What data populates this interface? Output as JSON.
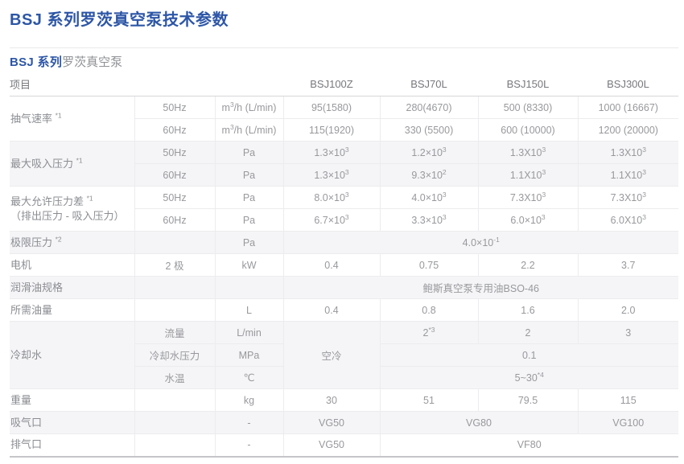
{
  "page_title": "BSJ 系列罗茨真空泵技术参数",
  "subtitle": {
    "bold": "BSJ 系列",
    "rest": "罗茨真空泵"
  },
  "colors": {
    "accent_blue": "#2d56a6",
    "label_gray": "#8b8d92",
    "value_gray": "#98999d",
    "stripe_gray": "#f5f5f7",
    "border_light": "#ececee",
    "border_dark": "#c6c6c9"
  },
  "table": {
    "header": {
      "item_label": "项目",
      "models": [
        "BSJ100Z",
        "BSJ70L",
        "BSJ150L",
        "BSJ300L"
      ]
    },
    "rows": [
      {
        "shade": false,
        "cells": [
          {
            "kind": "label",
            "rs": 2,
            "parts": [
              {
                "t": "抽气速率 "
              },
              {
                "s": "*1"
              }
            ]
          },
          {
            "kind": "sub",
            "parts": [
              {
                "t": "50Hz"
              }
            ]
          },
          {
            "kind": "unit",
            "parts": [
              {
                "t": "m"
              },
              {
                "s": "3"
              },
              {
                "t": "/h (L/min)"
              }
            ]
          },
          {
            "parts": [
              {
                "t": "95(1580)"
              }
            ]
          },
          {
            "parts": [
              {
                "t": "280(4670)"
              }
            ]
          },
          {
            "parts": [
              {
                "t": "500 (8330)"
              }
            ]
          },
          {
            "parts": [
              {
                "t": "1000 (16667)"
              }
            ]
          }
        ]
      },
      {
        "shade": false,
        "cells": [
          {
            "kind": "sub",
            "parts": [
              {
                "t": "60Hz"
              }
            ]
          },
          {
            "kind": "unit",
            "parts": [
              {
                "t": "m"
              },
              {
                "s": "3"
              },
              {
                "t": "/h (L/min)"
              }
            ]
          },
          {
            "parts": [
              {
                "t": "115(1920)"
              }
            ]
          },
          {
            "parts": [
              {
                "t": "330 (5500)"
              }
            ]
          },
          {
            "parts": [
              {
                "t": "600 (10000)"
              }
            ]
          },
          {
            "parts": [
              {
                "t": "1200 (20000)"
              }
            ]
          }
        ]
      },
      {
        "shade": true,
        "cells": [
          {
            "kind": "label",
            "rs": 2,
            "parts": [
              {
                "t": "最大吸入压力 "
              },
              {
                "s": "*1"
              }
            ]
          },
          {
            "kind": "sub",
            "parts": [
              {
                "t": "50Hz"
              }
            ]
          },
          {
            "kind": "unit",
            "parts": [
              {
                "t": "Pa"
              }
            ]
          },
          {
            "parts": [
              {
                "t": "1.3×10"
              },
              {
                "s": "3"
              }
            ]
          },
          {
            "parts": [
              {
                "t": "1.2×10"
              },
              {
                "s": "3"
              }
            ]
          },
          {
            "parts": [
              {
                "t": "1.3X10"
              },
              {
                "s": "3"
              }
            ]
          },
          {
            "parts": [
              {
                "t": "1.3X10"
              },
              {
                "s": "3"
              }
            ]
          }
        ]
      },
      {
        "shade": true,
        "cells": [
          {
            "kind": "sub",
            "parts": [
              {
                "t": "60Hz"
              }
            ]
          },
          {
            "kind": "unit",
            "parts": [
              {
                "t": "Pa"
              }
            ]
          },
          {
            "parts": [
              {
                "t": "1.3×10"
              },
              {
                "s": "3"
              }
            ]
          },
          {
            "parts": [
              {
                "t": "9.3×10"
              },
              {
                "s": "2"
              }
            ]
          },
          {
            "parts": [
              {
                "t": "1.1X10"
              },
              {
                "s": "3"
              }
            ]
          },
          {
            "parts": [
              {
                "t": "1.1X10"
              },
              {
                "s": "3"
              }
            ]
          }
        ]
      },
      {
        "shade": false,
        "cells": [
          {
            "kind": "label",
            "rs": 2,
            "parts": [
              {
                "t": "最大允许压力差 "
              },
              {
                "s": "*1"
              },
              {
                "br": true
              },
              {
                "t": "（排出压力 - 吸入压力）"
              }
            ]
          },
          {
            "kind": "sub",
            "parts": [
              {
                "t": "50Hz"
              }
            ]
          },
          {
            "kind": "unit",
            "parts": [
              {
                "t": "Pa"
              }
            ]
          },
          {
            "parts": [
              {
                "t": "8.0×10"
              },
              {
                "s": "3"
              }
            ]
          },
          {
            "parts": [
              {
                "t": "4.0×10"
              },
              {
                "s": "3"
              }
            ]
          },
          {
            "parts": [
              {
                "t": "7.3X10"
              },
              {
                "s": "3"
              }
            ]
          },
          {
            "parts": [
              {
                "t": "7.3X10"
              },
              {
                "s": "3"
              }
            ]
          }
        ]
      },
      {
        "shade": false,
        "cells": [
          {
            "kind": "sub",
            "parts": [
              {
                "t": "60Hz"
              }
            ]
          },
          {
            "kind": "unit",
            "parts": [
              {
                "t": "Pa"
              }
            ]
          },
          {
            "parts": [
              {
                "t": "6.7×10"
              },
              {
                "s": "3"
              }
            ]
          },
          {
            "parts": [
              {
                "t": "3.3×10"
              },
              {
                "s": "3"
              }
            ]
          },
          {
            "parts": [
              {
                "t": "6.0×10"
              },
              {
                "s": "3"
              }
            ]
          },
          {
            "parts": [
              {
                "t": "6.0X10"
              },
              {
                "s": "3"
              }
            ]
          }
        ]
      },
      {
        "shade": true,
        "cells": [
          {
            "kind": "label",
            "parts": [
              {
                "t": "极限压力 "
              },
              {
                "s": "*2"
              }
            ]
          },
          {
            "kind": "sub",
            "parts": []
          },
          {
            "kind": "unit",
            "parts": [
              {
                "t": "Pa"
              }
            ]
          },
          {
            "cs": 4,
            "parts": [
              {
                "t": "4.0×10"
              },
              {
                "s": "-1"
              }
            ]
          }
        ]
      },
      {
        "shade": false,
        "cells": [
          {
            "kind": "label",
            "parts": [
              {
                "t": "电机"
              }
            ]
          },
          {
            "kind": "sub",
            "parts": [
              {
                "t": "2 极"
              }
            ]
          },
          {
            "kind": "unit",
            "parts": [
              {
                "t": "kW"
              }
            ]
          },
          {
            "parts": [
              {
                "t": "0.4"
              }
            ]
          },
          {
            "parts": [
              {
                "t": "0.75"
              }
            ]
          },
          {
            "parts": [
              {
                "t": "2.2"
              }
            ]
          },
          {
            "parts": [
              {
                "t": "3.7"
              }
            ]
          }
        ]
      },
      {
        "shade": true,
        "cells": [
          {
            "kind": "label",
            "parts": [
              {
                "t": "润滑油规格"
              }
            ]
          },
          {
            "kind": "sub",
            "parts": []
          },
          {
            "kind": "unit",
            "parts": []
          },
          {
            "cs": 4,
            "parts": [
              {
                "t": "鲍斯真空泵专用油BSO-46"
              }
            ]
          }
        ]
      },
      {
        "shade": false,
        "cells": [
          {
            "kind": "label",
            "parts": [
              {
                "t": "所需油量"
              }
            ]
          },
          {
            "kind": "sub",
            "parts": []
          },
          {
            "kind": "unit",
            "parts": [
              {
                "t": "L"
              }
            ]
          },
          {
            "parts": [
              {
                "t": "0.4"
              }
            ]
          },
          {
            "parts": [
              {
                "t": "0.8"
              }
            ]
          },
          {
            "parts": [
              {
                "t": "1.6"
              }
            ]
          },
          {
            "parts": [
              {
                "t": "2.0"
              }
            ]
          }
        ]
      },
      {
        "shade": true,
        "cells": [
          {
            "kind": "label",
            "rs": 3,
            "parts": [
              {
                "t": "冷却水"
              }
            ]
          },
          {
            "kind": "sub",
            "parts": [
              {
                "t": "流量"
              }
            ]
          },
          {
            "kind": "unit",
            "parts": [
              {
                "t": "L/min"
              }
            ]
          },
          {
            "rs": 3,
            "parts": [
              {
                "t": "空冷"
              }
            ]
          },
          {
            "parts": [
              {
                "t": "2"
              },
              {
                "s": "*3"
              }
            ]
          },
          {
            "parts": [
              {
                "t": "2"
              }
            ]
          },
          {
            "parts": [
              {
                "t": "3"
              }
            ]
          }
        ]
      },
      {
        "shade": true,
        "cells": [
          {
            "kind": "sub",
            "parts": [
              {
                "t": "冷却水压力"
              }
            ]
          },
          {
            "kind": "unit",
            "parts": [
              {
                "t": "MPa"
              }
            ]
          },
          {
            "cs": 3,
            "parts": [
              {
                "t": "0.1"
              }
            ]
          }
        ]
      },
      {
        "shade": true,
        "cells": [
          {
            "kind": "sub",
            "parts": [
              {
                "t": "水温"
              }
            ]
          },
          {
            "kind": "unit",
            "parts": [
              {
                "t": "℃"
              }
            ]
          },
          {
            "cs": 3,
            "parts": [
              {
                "t": "5~30"
              },
              {
                "s": "*4"
              }
            ]
          }
        ]
      },
      {
        "shade": false,
        "cells": [
          {
            "kind": "label",
            "parts": [
              {
                "t": "重量"
              }
            ]
          },
          {
            "kind": "sub",
            "parts": []
          },
          {
            "kind": "unit",
            "parts": [
              {
                "t": "kg"
              }
            ]
          },
          {
            "parts": [
              {
                "t": "30"
              }
            ]
          },
          {
            "parts": [
              {
                "t": "51"
              }
            ]
          },
          {
            "parts": [
              {
                "t": "79.5"
              }
            ]
          },
          {
            "parts": [
              {
                "t": "115"
              }
            ]
          }
        ]
      },
      {
        "shade": true,
        "cells": [
          {
            "kind": "label",
            "parts": [
              {
                "t": "吸气口"
              }
            ]
          },
          {
            "kind": "sub",
            "parts": []
          },
          {
            "kind": "unit",
            "parts": [
              {
                "t": "-"
              }
            ]
          },
          {
            "parts": [
              {
                "t": "VG50"
              }
            ]
          },
          {
            "cs": 2,
            "parts": [
              {
                "t": "VG80"
              }
            ]
          },
          {
            "parts": [
              {
                "t": "VG100"
              }
            ]
          }
        ]
      },
      {
        "shade": false,
        "cells": [
          {
            "kind": "label",
            "parts": [
              {
                "t": "排气口"
              }
            ]
          },
          {
            "kind": "sub",
            "parts": []
          },
          {
            "kind": "unit",
            "parts": [
              {
                "t": "-"
              }
            ]
          },
          {
            "parts": [
              {
                "t": "VG50"
              }
            ]
          },
          {
            "cs": 3,
            "parts": [
              {
                "t": "VF80"
              }
            ]
          }
        ]
      }
    ]
  }
}
